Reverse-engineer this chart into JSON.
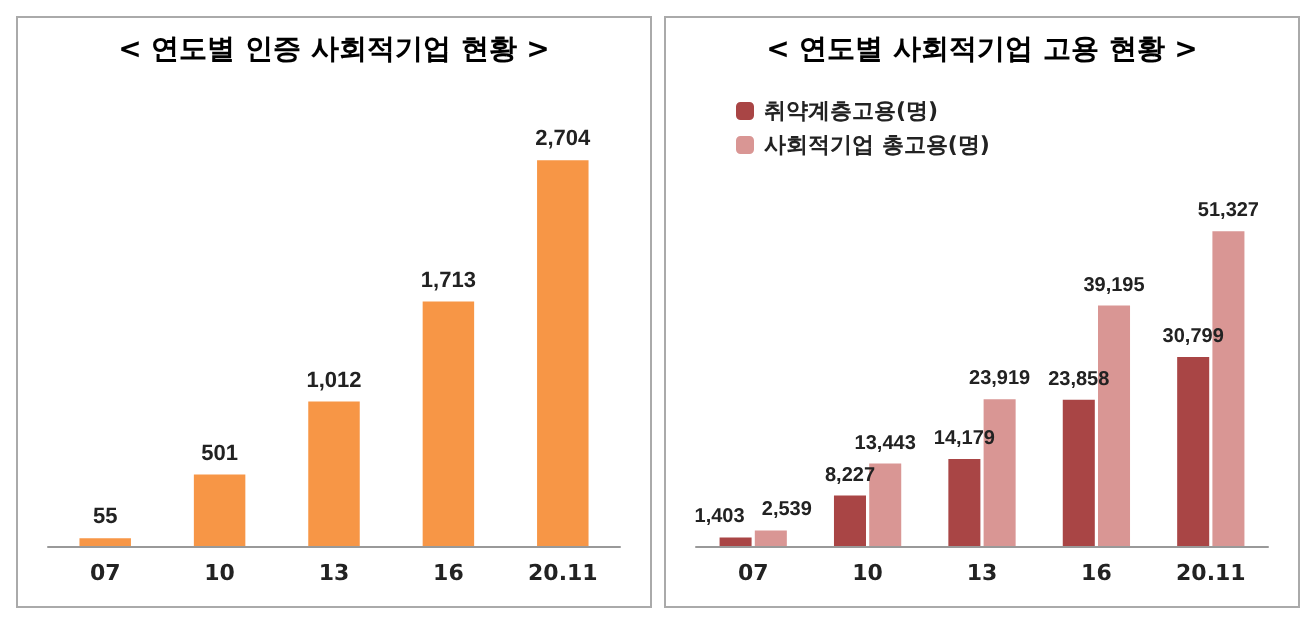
{
  "chart_data": [
    {
      "type": "bar",
      "title": "< 연도별 인증 사회적기업 현황 >",
      "categories": [
        "07",
        "10",
        "13",
        "16",
        "20.11"
      ],
      "values": [
        55,
        501,
        1012,
        1713,
        2704
      ],
      "value_labels": [
        "55",
        "501",
        "1,012",
        "1,713",
        "2,704"
      ],
      "color": "#f79646",
      "legend": false
    },
    {
      "type": "bar",
      "title": "< 연도별 사회적기업 고용 현황 >",
      "categories": [
        "07",
        "10",
        "13",
        "16",
        "20.11"
      ],
      "series": [
        {
          "name": "취약계층고용(명)",
          "color": "#a94545",
          "values": [
            1403,
            8227,
            14179,
            23858,
            30799
          ],
          "value_labels": [
            "1,403",
            "8,227",
            "14,179",
            "23,858",
            "30,799"
          ]
        },
        {
          "name": "사회적기업 총고용(명)",
          "color": "#d99694",
          "values": [
            2539,
            13443,
            23919,
            39195,
            51327
          ],
          "value_labels": [
            "2,539",
            "13,443",
            "23,919",
            "39,195",
            "51,327"
          ]
        }
      ],
      "legend": "top left"
    }
  ]
}
